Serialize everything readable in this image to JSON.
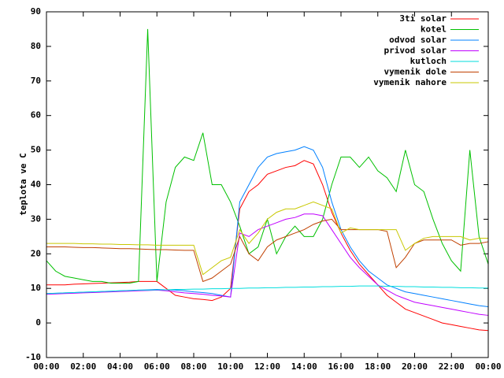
{
  "chart_data": {
    "type": "line",
    "y_label": "teplota ve C",
    "legend": "upper right",
    "grid": false,
    "xlim": [
      0,
      24
    ],
    "ylim": [
      -10,
      90
    ],
    "xticks": [
      {
        "value": 0,
        "label": "00:00"
      },
      {
        "value": 2,
        "label": "02:00"
      },
      {
        "value": 4,
        "label": "04:00"
      },
      {
        "value": 6,
        "label": "06:00"
      },
      {
        "value": 8,
        "label": "08:00"
      },
      {
        "value": 10,
        "label": "10:00"
      },
      {
        "value": 12,
        "label": "12:00"
      },
      {
        "value": 14,
        "label": "14:00"
      },
      {
        "value": 16,
        "label": "16:00"
      },
      {
        "value": 18,
        "label": "18:00"
      },
      {
        "value": 20,
        "label": "20:00"
      },
      {
        "value": 22,
        "label": "22:00"
      },
      {
        "value": 24,
        "label": "00:00"
      }
    ],
    "yticks": [
      -10,
      0,
      10,
      20,
      30,
      40,
      50,
      60,
      70,
      80,
      90
    ],
    "x": [
      0,
      0.5,
      1,
      1.5,
      2,
      2.5,
      3,
      3.5,
      4,
      4.5,
      5,
      5.5,
      6,
      6.5,
      7,
      7.5,
      8,
      8.5,
      9,
      9.5,
      10,
      10.5,
      11,
      11.5,
      12,
      12.5,
      13,
      13.5,
      14,
      14.5,
      15,
      15.5,
      16,
      16.5,
      17,
      17.5,
      18,
      18.5,
      19,
      19.5,
      20,
      20.5,
      21,
      21.5,
      22,
      22.5,
      23,
      23.5,
      24
    ],
    "series": [
      {
        "name": "3ti solar",
        "color": "#ff0000",
        "values": [
          11,
          11,
          11,
          11.2,
          11.3,
          11.4,
          11.5,
          11.6,
          11.7,
          11.8,
          12,
          12,
          12,
          10,
          8,
          7.5,
          7,
          6.8,
          6.5,
          7.5,
          10,
          33,
          38,
          40,
          43,
          44,
          45,
          45.5,
          47,
          46,
          40,
          32,
          26,
          21,
          17,
          14,
          11,
          8,
          6,
          4,
          3,
          2,
          1,
          0,
          -0.5,
          -1,
          -1.5,
          -2,
          -2.2
        ]
      },
      {
        "name": "kotel",
        "color": "#00c000",
        "values": [
          18,
          15,
          13.5,
          13,
          12.5,
          12,
          12,
          11.5,
          11.5,
          11.5,
          12,
          85,
          12,
          35,
          45,
          48,
          47,
          55,
          40,
          40,
          35,
          28,
          20,
          22,
          30,
          20,
          25,
          28,
          25,
          25,
          30,
          40,
          48,
          48,
          45,
          48,
          44,
          42,
          38,
          50,
          40,
          38,
          30,
          23,
          18,
          15,
          50,
          25,
          17
        ]
      },
      {
        "name": "odvod solar",
        "color": "#0080ff",
        "values": [
          8.5,
          8.6,
          8.7,
          8.8,
          8.9,
          9,
          9.1,
          9.2,
          9.3,
          9.4,
          9.5,
          9.6,
          9.7,
          9.6,
          9.5,
          9.3,
          9,
          8.8,
          8.5,
          8,
          7.5,
          35,
          40,
          45,
          48,
          49,
          49.5,
          50,
          51,
          50,
          45,
          35,
          27,
          22,
          18,
          15,
          13,
          11,
          10,
          9,
          8.5,
          8,
          7.5,
          7,
          6.5,
          6,
          5.5,
          5,
          4.7
        ]
      },
      {
        "name": "privod solar",
        "color": "#c000ff",
        "values": [
          8.3,
          8.4,
          8.5,
          8.6,
          8.7,
          8.8,
          8.9,
          9,
          9.1,
          9.2,
          9.3,
          9.4,
          9.5,
          9.3,
          9,
          8.7,
          8.5,
          8.3,
          8,
          7.8,
          7.5,
          26,
          25,
          27,
          28,
          29,
          30,
          30.5,
          31.5,
          31.5,
          31,
          27,
          23,
          19,
          16,
          13.5,
          11,
          9.5,
          8,
          7,
          6,
          5.5,
          5,
          4.5,
          4,
          3.5,
          3,
          2.5,
          2.2
        ]
      },
      {
        "name": "kutloch",
        "color": "#00dddd",
        "values": [
          8.5,
          8.6,
          8.7,
          8.8,
          8.9,
          9,
          9.1,
          9.2,
          9.3,
          9.4,
          9.5,
          9.5,
          9.6,
          9.6,
          9.7,
          9.7,
          9.8,
          9.8,
          9.9,
          9.9,
          10,
          10,
          10.1,
          10.1,
          10.2,
          10.2,
          10.3,
          10.3,
          10.4,
          10.4,
          10.5,
          10.5,
          10.6,
          10.6,
          10.7,
          10.7,
          10.7,
          10.6,
          10.6,
          10.5,
          10.5,
          10.4,
          10.4,
          10.3,
          10.3,
          10.2,
          10.2,
          10.1,
          10.1
        ]
      },
      {
        "name": "vymenik dole",
        "color": "#c04000",
        "values": [
          22,
          22,
          22,
          21.9,
          21.8,
          21.8,
          21.7,
          21.6,
          21.5,
          21.5,
          21.4,
          21.3,
          21.2,
          21.2,
          21.1,
          21,
          21,
          12,
          13,
          15,
          17,
          25,
          20,
          18,
          22,
          24,
          25,
          26,
          27,
          28.5,
          29.5,
          30,
          27,
          27,
          27,
          27,
          27,
          26.5,
          16,
          19,
          23,
          24,
          24,
          24,
          24,
          22.5,
          23,
          23,
          23.5
        ]
      },
      {
        "name": "vymenik nahore",
        "color": "#c8c800",
        "values": [
          23,
          23,
          23,
          23,
          22.9,
          22.9,
          22.8,
          22.8,
          22.7,
          22.7,
          22.6,
          22.6,
          22.5,
          22.5,
          22.5,
          22.5,
          22.5,
          14,
          16,
          18,
          19,
          27,
          23,
          26,
          30,
          32,
          33,
          33,
          34,
          35,
          34,
          33,
          26,
          27.5,
          27,
          27,
          27,
          27,
          27,
          21,
          23,
          24.5,
          25,
          25,
          25,
          25,
          24,
          24.5,
          24.5
        ]
      }
    ]
  }
}
